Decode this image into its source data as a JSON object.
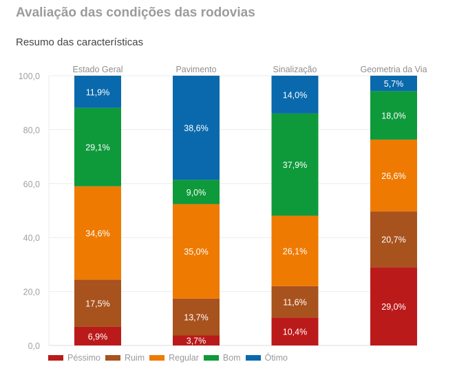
{
  "header": {
    "title": "Avaliação das condições das rodovias",
    "subtitle": "Resumo das características"
  },
  "chart_data": {
    "type": "bar",
    "stacked": true,
    "title": "Resumo das características",
    "xlabel": "",
    "ylabel": "",
    "ylim": [
      0,
      100
    ],
    "yticks": [
      0,
      20,
      40,
      60,
      80,
      100
    ],
    "ytick_labels": [
      "0,0",
      "20,0",
      "40,0",
      "60,0",
      "80,0",
      "100,0"
    ],
    "grid": true,
    "category_label_position": "top",
    "legend_position": "bottom-left",
    "categories": [
      "Estado Geral",
      "Pavimento",
      "Sinalização",
      "Geometria da Via"
    ],
    "series": [
      {
        "name": "Péssimo",
        "color": "#bb1a1a",
        "values": [
          6.9,
          3.7,
          10.4,
          29.0
        ],
        "labels": [
          "6,9%",
          "3,7%",
          "10,4%",
          "29,0%"
        ]
      },
      {
        "name": "Ruim",
        "color": "#a8521d",
        "values": [
          17.5,
          13.7,
          11.6,
          20.7
        ],
        "labels": [
          "17,5%",
          "13,7%",
          "11,6%",
          "20,7%"
        ]
      },
      {
        "name": "Regular",
        "color": "#ee7a02",
        "values": [
          34.6,
          35.0,
          26.1,
          26.6
        ],
        "labels": [
          "34,6%",
          "35,0%",
          "26,1%",
          "26,6%"
        ]
      },
      {
        "name": "Bom",
        "color": "#0e9a3a",
        "values": [
          29.1,
          9.0,
          37.9,
          18.0
        ],
        "labels": [
          "29,1%",
          "9,0%",
          "37,9%",
          "18,0%"
        ]
      },
      {
        "name": "Ótimo",
        "color": "#0969ac",
        "values": [
          11.9,
          38.6,
          14.0,
          5.7
        ],
        "labels": [
          "11,9%",
          "38,6%",
          "14,0%",
          "5,7%"
        ]
      }
    ]
  }
}
